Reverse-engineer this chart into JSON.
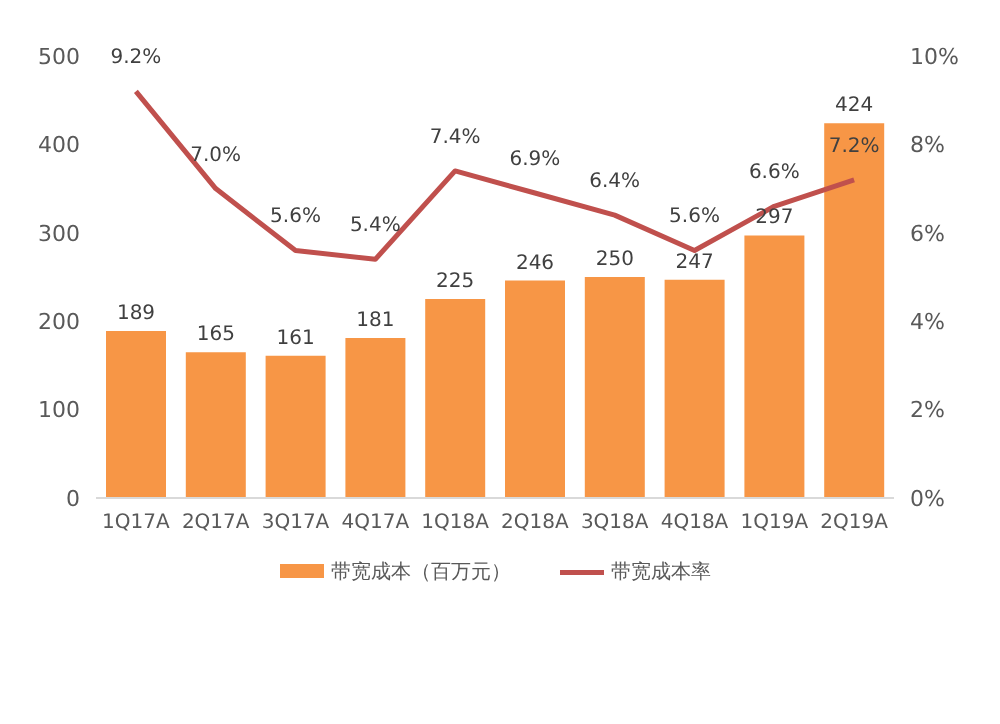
{
  "chart_data": {
    "type": "bar",
    "categories": [
      "1Q17A",
      "2Q17A",
      "3Q17A",
      "4Q17A",
      "1Q18A",
      "2Q18A",
      "3Q18A",
      "4Q18A",
      "1Q19A",
      "2Q19A"
    ],
    "series": [
      {
        "name": "带宽成本（百万元）",
        "color": "#f79646",
        "values": [
          189,
          165,
          161,
          181,
          225,
          246,
          250,
          247,
          297,
          424
        ],
        "value_labels": [
          "189",
          "165",
          "161",
          "181",
          "225",
          "246",
          "250",
          "247",
          "297",
          "424"
        ]
      },
      {
        "name": "带宽成本率",
        "type": "line",
        "axis": "y2",
        "color": "#c0504d",
        "values": [
          9.2,
          7.0,
          5.6,
          5.4,
          7.4,
          6.9,
          6.4,
          5.6,
          6.6,
          7.2
        ],
        "value_labels": [
          "9.2%",
          "7.0%",
          "5.6%",
          "5.4%",
          "7.4%",
          "6.9%",
          "6.4%",
          "5.6%",
          "6.6%",
          "7.2%"
        ]
      }
    ],
    "ylim": [
      0,
      500
    ],
    "yticks": [
      0,
      100,
      200,
      300,
      400,
      500
    ],
    "y2lim": [
      0,
      10
    ],
    "y2ticks": [
      {
        "value": 0,
        "label": "0%"
      },
      {
        "value": 2,
        "label": "2%"
      },
      {
        "value": 4,
        "label": "4%"
      },
      {
        "value": 6,
        "label": "6%"
      },
      {
        "value": 8,
        "label": "8%"
      },
      {
        "value": 10,
        "label": "10%"
      }
    ],
    "legend": "bottom",
    "marker": "none",
    "line_style": "solid",
    "grid": false
  }
}
